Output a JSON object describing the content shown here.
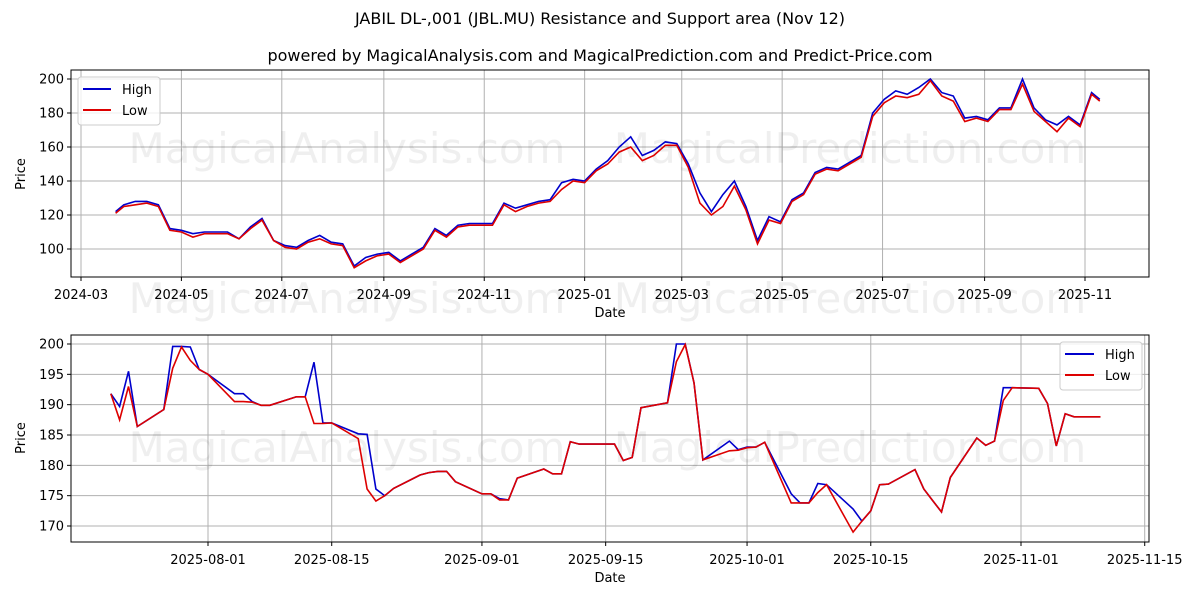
{
  "title": "JABIL DL-,001 (JBL.MU) Resistance and Support area (Nov 12)",
  "subtitle": "powered by MagicalAnalysis.com and MagicalPrediction.com and Predict-Price.com",
  "watermarks": [
    "MagicalAnalysis.com",
    "MagicalPrediction.com"
  ],
  "colors": {
    "high": "#0000cc",
    "low": "#dd0000",
    "grid": "#b0b0b0"
  },
  "chart_data": [
    {
      "type": "line",
      "title": "",
      "xlabel": "Date",
      "ylabel": "Price",
      "ylim": [
        84,
        206
      ],
      "yticks": [
        100,
        120,
        140,
        160,
        180,
        200
      ],
      "xticks": [
        "2024-03",
        "2024-05",
        "2024-07",
        "2024-09",
        "2024-11",
        "2025-01",
        "2025-03",
        "2025-05",
        "2025-07",
        "2025-09",
        "2025-11"
      ],
      "grid": true,
      "legend": {
        "position": "upper left",
        "entries": [
          "High",
          "Low"
        ]
      },
      "x": [
        "2024-03-22",
        "2024-03-27",
        "2024-04-03",
        "2024-04-10",
        "2024-04-17",
        "2024-04-24",
        "2024-05-01",
        "2024-05-08",
        "2024-05-15",
        "2024-05-22",
        "2024-05-29",
        "2024-06-05",
        "2024-06-12",
        "2024-06-19",
        "2024-06-26",
        "2024-07-03",
        "2024-07-10",
        "2024-07-17",
        "2024-07-24",
        "2024-07-31",
        "2024-08-07",
        "2024-08-14",
        "2024-08-21",
        "2024-08-28",
        "2024-09-04",
        "2024-09-11",
        "2024-09-18",
        "2024-09-25",
        "2024-10-02",
        "2024-10-09",
        "2024-10-16",
        "2024-10-23",
        "2024-10-30",
        "2024-11-06",
        "2024-11-13",
        "2024-11-20",
        "2024-11-27",
        "2024-12-04",
        "2024-12-11",
        "2024-12-18",
        "2024-12-25",
        "2025-01-01",
        "2025-01-08",
        "2025-01-15",
        "2025-01-22",
        "2025-01-29",
        "2025-02-05",
        "2025-02-12",
        "2025-02-19",
        "2025-02-26",
        "2025-03-05",
        "2025-03-12",
        "2025-03-19",
        "2025-03-26",
        "2025-04-02",
        "2025-04-09",
        "2025-04-16",
        "2025-04-23",
        "2025-04-30",
        "2025-05-07",
        "2025-05-14",
        "2025-05-21",
        "2025-05-28",
        "2025-06-04",
        "2025-06-11",
        "2025-06-18",
        "2025-06-25",
        "2025-07-02",
        "2025-07-09",
        "2025-07-16",
        "2025-07-23",
        "2025-07-30",
        "2025-08-06",
        "2025-08-13",
        "2025-08-20",
        "2025-08-27",
        "2025-09-03",
        "2025-09-10",
        "2025-09-17",
        "2025-09-24",
        "2025-10-01",
        "2025-10-08",
        "2025-10-15",
        "2025-10-22",
        "2025-10-29",
        "2025-11-05",
        "2025-11-10"
      ],
      "series": [
        {
          "name": "High",
          "values": [
            122,
            126,
            128,
            128,
            126,
            112,
            111,
            109,
            110,
            110,
            110,
            106,
            113,
            118,
            105,
            102,
            101,
            105,
            108,
            104,
            103,
            90,
            95,
            97,
            98,
            93,
            97,
            101,
            112,
            108,
            114,
            115,
            115,
            115,
            127,
            124,
            126,
            128,
            129,
            139,
            141,
            140,
            147,
            152,
            160,
            166,
            155,
            158,
            163,
            162,
            150,
            133,
            122,
            132,
            140,
            125,
            105,
            119,
            116,
            129,
            133,
            145,
            148,
            147,
            151,
            155,
            180,
            188,
            193,
            191,
            195,
            200,
            192,
            190,
            177,
            178,
            176,
            183,
            183,
            200,
            183,
            176,
            173,
            178,
            173,
            192,
            188
          ],
          "values_note": "approx weekly reading"
        },
        {
          "name": "Low",
          "values": [
            121,
            125,
            126,
            127,
            125,
            111,
            110,
            107,
            109,
            109,
            109,
            106,
            112,
            117,
            105,
            101,
            100,
            104,
            106,
            103,
            102,
            89,
            93,
            96,
            97,
            92,
            96,
            100,
            111,
            107,
            113,
            114,
            114,
            114,
            126,
            122,
            125,
            127,
            128,
            135,
            140,
            139,
            146,
            150,
            157,
            160,
            152,
            155,
            161,
            161,
            148,
            127,
            120,
            125,
            137,
            123,
            103,
            117,
            115,
            128,
            132,
            144,
            147,
            146,
            150,
            154,
            178,
            186,
            190,
            189,
            191,
            199,
            190,
            187,
            175,
            177,
            175,
            182,
            182,
            197,
            181,
            175,
            169,
            177,
            172,
            191,
            187
          ]
        }
      ]
    },
    {
      "type": "line",
      "title": "",
      "xlabel": "Date",
      "ylabel": "Price",
      "ylim": [
        167.5,
        201.5
      ],
      "yticks": [
        170,
        175,
        180,
        185,
        190,
        195,
        200
      ],
      "xticks": [
        "2025-08-01",
        "2025-08-15",
        "2025-09-01",
        "2025-09-15",
        "2025-10-01",
        "2025-10-15",
        "2025-11-01",
        "2025-11-15"
      ],
      "grid": true,
      "legend": {
        "position": "upper right",
        "entries": [
          "High",
          "Low"
        ]
      },
      "x": [
        "2025-07-21",
        "2025-07-22",
        "2025-07-23",
        "2025-07-24",
        "2025-07-27",
        "2025-07-28",
        "2025-07-29",
        "2025-07-30",
        "2025-07-31",
        "2025-08-01",
        "2025-08-04",
        "2025-08-05",
        "2025-08-06",
        "2025-08-07",
        "2025-08-08",
        "2025-08-11",
        "2025-08-12",
        "2025-08-13",
        "2025-08-14",
        "2025-08-15",
        "2025-08-18",
        "2025-08-19",
        "2025-08-20",
        "2025-08-21",
        "2025-08-22",
        "2025-08-25",
        "2025-08-26",
        "2025-08-27",
        "2025-08-28",
        "2025-08-29",
        "2025-09-01",
        "2025-09-02",
        "2025-09-03",
        "2025-09-04",
        "2025-09-05",
        "2025-09-08",
        "2025-09-09",
        "2025-09-10",
        "2025-09-11",
        "2025-09-12",
        "2025-09-15",
        "2025-09-16",
        "2025-09-17",
        "2025-09-18",
        "2025-09-19",
        "2025-09-22",
        "2025-09-23",
        "2025-09-24",
        "2025-09-25",
        "2025-09-26",
        "2025-09-29",
        "2025-09-30",
        "2025-10-01",
        "2025-10-02",
        "2025-10-03",
        "2025-10-06",
        "2025-10-07",
        "2025-10-08",
        "2025-10-09",
        "2025-10-10",
        "2025-10-13",
        "2025-10-14",
        "2025-10-15",
        "2025-10-16",
        "2025-10-17",
        "2025-10-20",
        "2025-10-21",
        "2025-10-22",
        "2025-10-23",
        "2025-10-24",
        "2025-10-27",
        "2025-10-28",
        "2025-10-29",
        "2025-10-30",
        "2025-10-31",
        "2025-11-03",
        "2025-11-04",
        "2025-11-05",
        "2025-11-06",
        "2025-11-07",
        "2025-11-10"
      ],
      "series": [
        {
          "name": "High",
          "values": [
            191.8,
            189.7,
            195.5,
            186.4,
            189.2,
            199.6,
            199.6,
            199.5,
            195.8,
            195.0,
            191.8,
            191.8,
            190.5,
            189.9,
            189.9,
            191.3,
            191.3,
            197.0,
            187.0,
            187.0,
            185.2,
            185.1,
            176.1,
            175.0,
            176.2,
            178.4,
            178.8,
            179.0,
            179.0,
            177.3,
            175.3,
            175.3,
            174.5,
            174.3,
            177.9,
            179.4,
            178.6,
            178.6,
            183.9,
            183.5,
            183.5,
            183.5,
            180.8,
            181.3,
            189.5,
            190.3,
            200.0,
            200.0,
            193.6,
            180.9,
            184.0,
            182.6,
            183.0,
            183.0,
            183.8,
            175.3,
            173.8,
            173.8,
            177.0,
            176.8,
            172.8,
            170.8,
            172.5,
            176.8,
            176.9,
            179.3,
            176.1,
            174.2,
            172.3,
            178.0,
            184.5,
            183.3,
            184.0,
            192.8,
            192.8,
            192.7,
            190.2,
            183.2,
            188.5,
            188.0,
            188.0
          ]
        },
        {
          "name": "Low",
          "values": [
            191.8,
            187.5,
            193.0,
            186.4,
            189.2,
            196.0,
            199.5,
            197.3,
            195.8,
            195.0,
            190.5,
            190.5,
            190.4,
            189.9,
            189.9,
            191.3,
            191.3,
            186.9,
            186.9,
            187.0,
            184.4,
            176.1,
            174.1,
            175.0,
            176.2,
            178.4,
            178.8,
            179.0,
            179.0,
            177.3,
            175.3,
            175.3,
            174.3,
            174.3,
            177.9,
            179.4,
            178.6,
            178.6,
            183.9,
            183.5,
            183.5,
            183.5,
            180.8,
            181.3,
            189.5,
            190.3,
            197.1,
            199.9,
            193.6,
            180.9,
            182.4,
            182.5,
            182.9,
            183.0,
            183.8,
            173.8,
            173.8,
            173.8,
            175.5,
            176.8,
            169.0,
            170.8,
            172.5,
            176.8,
            176.9,
            179.3,
            176.1,
            174.2,
            172.3,
            178.0,
            184.5,
            183.3,
            184.0,
            190.7,
            192.8,
            192.7,
            190.2,
            183.2,
            188.5,
            188.0,
            188.0
          ]
        }
      ]
    }
  ]
}
